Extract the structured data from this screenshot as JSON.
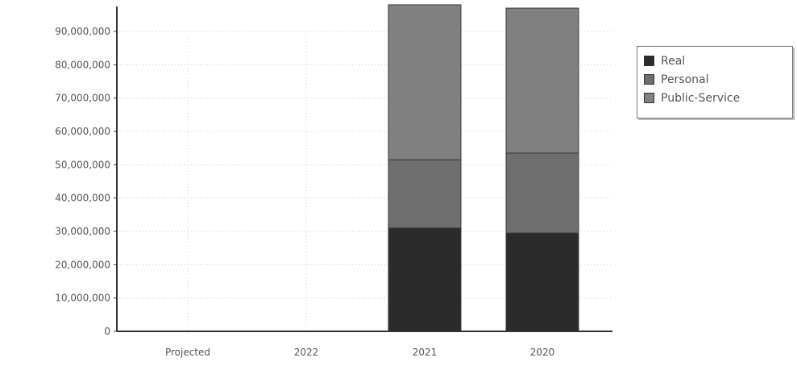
{
  "chart_data": {
    "type": "bar",
    "stacked": true,
    "categories": [
      "Projected",
      "2022",
      "2021",
      "2020"
    ],
    "series": [
      {
        "name": "Real",
        "color": "#2b2b2b",
        "values": [
          0,
          0,
          31000000,
          29500000
        ]
      },
      {
        "name": "Personal",
        "color": "#6e6e6e",
        "values": [
          0,
          0,
          20500000,
          24000000
        ]
      },
      {
        "name": "Public-Service",
        "color": "#808080",
        "values": [
          0,
          0,
          46500000,
          43500000
        ]
      }
    ],
    "y_ticks": [
      "0",
      "10,000,000",
      "20,000,000",
      "30,000,000",
      "40,000,000",
      "50,000,000",
      "60,000,000",
      "70,000,000",
      "80,000,000",
      "90,000,000"
    ],
    "ylim": [
      0,
      97500000
    ],
    "grid": true,
    "legend_position": "right"
  }
}
